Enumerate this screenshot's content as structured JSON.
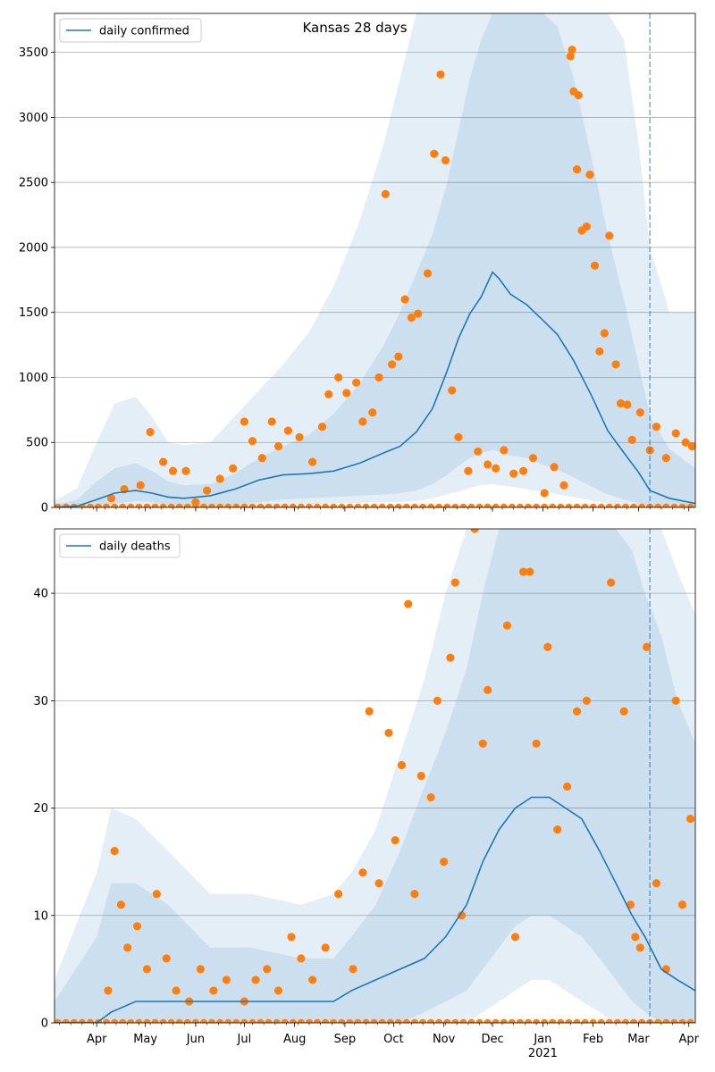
{
  "figure": {
    "title": "Kansas 28 days",
    "x_ticks": [
      "Apr",
      "May",
      "Jun",
      "Jul",
      "Aug",
      "Sep",
      "Oct",
      "Nov",
      "Dec",
      "Jan",
      "Feb",
      "Mar",
      "Apr"
    ],
    "x_year_label": "2021",
    "colors": {
      "line": "#1f77b4",
      "band": "#1f77b4",
      "points": "#ff7f0e",
      "grid": "#b0b0b0"
    },
    "vline_date": "Mar 8, 2021"
  },
  "chart_data": [
    {
      "type": "line",
      "legend": "daily confirmed",
      "legend_position": "top-left",
      "x_range": [
        "Mar 6, 2020",
        "Apr 5, 2021"
      ],
      "ylim": [
        0,
        3800
      ],
      "y_ticks": [
        0,
        500,
        1000,
        1500,
        2000,
        2500,
        3000,
        3500
      ],
      "grid": "horizontal",
      "median": [
        {
          "date": "Mar 6",
          "y": 0
        },
        {
          "date": "Mar 20",
          "y": 10
        },
        {
          "date": "Apr 1",
          "y": 60
        },
        {
          "date": "Apr 12",
          "y": 110
        },
        {
          "date": "Apr 25",
          "y": 130
        },
        {
          "date": "May 5",
          "y": 110
        },
        {
          "date": "May 15",
          "y": 80
        },
        {
          "date": "May 25",
          "y": 70
        },
        {
          "date": "Jun 10",
          "y": 90
        },
        {
          "date": "Jun 25",
          "y": 140
        },
        {
          "date": "Jul 10",
          "y": 210
        },
        {
          "date": "Jul 25",
          "y": 250
        },
        {
          "date": "Aug 10",
          "y": 260
        },
        {
          "date": "Aug 25",
          "y": 280
        },
        {
          "date": "Sep 10",
          "y": 340
        },
        {
          "date": "Sep 25",
          "y": 420
        },
        {
          "date": "Oct 5",
          "y": 470
        },
        {
          "date": "Oct 15",
          "y": 580
        },
        {
          "date": "Oct 25",
          "y": 760
        },
        {
          "date": "Nov 3",
          "y": 1050
        },
        {
          "date": "Nov 10",
          "y": 1300
        },
        {
          "date": "Nov 17",
          "y": 1490
        },
        {
          "date": "Nov 24",
          "y": 1620
        },
        {
          "date": "Dec 1",
          "y": 1810
        },
        {
          "date": "Dec 5",
          "y": 1760
        },
        {
          "date": "Dec 12",
          "y": 1640
        },
        {
          "date": "Dec 22",
          "y": 1560
        },
        {
          "date": "Jan 1",
          "y": 1440
        },
        {
          "date": "Jan 10",
          "y": 1330
        },
        {
          "date": "Jan 20",
          "y": 1130
        },
        {
          "date": "Jan 31",
          "y": 860
        },
        {
          "date": "Feb 10",
          "y": 590
        },
        {
          "date": "Feb 20",
          "y": 420
        },
        {
          "date": "Mar 1",
          "y": 270
        },
        {
          "date": "Mar 8",
          "y": 130
        },
        {
          "date": "Mar 20",
          "y": 70
        },
        {
          "date": "Apr 5",
          "y": 30
        }
      ],
      "bands": [
        {
          "lower": [
            0,
            0,
            5,
            30,
            50,
            40,
            20,
            10,
            10,
            20,
            40,
            60,
            70,
            80,
            90,
            100,
            110,
            130,
            180,
            250,
            320,
            380,
            420,
            440,
            430,
            400,
            380,
            330,
            290,
            230,
            160,
            100,
            60,
            30,
            10,
            0,
            0
          ],
          "upper": [
            20,
            60,
            200,
            300,
            340,
            280,
            200,
            170,
            180,
            260,
            380,
            470,
            560,
            720,
            950,
            1250,
            1500,
            1800,
            2100,
            2500,
            2900,
            3300,
            3600,
            3800,
            3800,
            3800,
            3800,
            3800,
            3700,
            3300,
            2700,
            2100,
            1600,
            1100,
            700,
            450,
            300
          ]
        },
        {
          "lower": [
            0,
            0,
            0,
            10,
            20,
            15,
            5,
            0,
            0,
            5,
            10,
            20,
            25,
            30,
            35,
            40,
            40,
            50,
            70,
            100,
            120,
            150,
            170,
            180,
            170,
            160,
            140,
            120,
            100,
            80,
            50,
            30,
            15,
            5,
            0,
            0,
            0
          ],
          "upper": [
            50,
            150,
            500,
            800,
            850,
            700,
            500,
            480,
            500,
            700,
            900,
            1100,
            1350,
            1700,
            2200,
            2800,
            3300,
            3800,
            3800,
            3800,
            3800,
            3800,
            3800,
            3800,
            3800,
            3800,
            3800,
            3800,
            3800,
            3800,
            3800,
            3800,
            3600,
            2800,
            2000,
            1500,
            1500
          ]
        }
      ],
      "observed": [
        {
          "date": "Apr 10",
          "y": 70
        },
        {
          "date": "Apr 18",
          "y": 140
        },
        {
          "date": "Apr 28",
          "y": 170
        },
        {
          "date": "May 4",
          "y": 580
        },
        {
          "date": "May 12",
          "y": 350
        },
        {
          "date": "May 18",
          "y": 280
        },
        {
          "date": "May 26",
          "y": 280
        },
        {
          "date": "Jun 1",
          "y": 40
        },
        {
          "date": "Jun 8",
          "y": 130
        },
        {
          "date": "Jun 16",
          "y": 220
        },
        {
          "date": "Jun 24",
          "y": 300
        },
        {
          "date": "Jul 1",
          "y": 660
        },
        {
          "date": "Jul 6",
          "y": 510
        },
        {
          "date": "Jul 12",
          "y": 380
        },
        {
          "date": "Jul 18",
          "y": 660
        },
        {
          "date": "Jul 22",
          "y": 470
        },
        {
          "date": "Jul 28",
          "y": 590
        },
        {
          "date": "Aug 4",
          "y": 540
        },
        {
          "date": "Aug 12",
          "y": 350
        },
        {
          "date": "Aug 18",
          "y": 620
        },
        {
          "date": "Aug 22",
          "y": 870
        },
        {
          "date": "Aug 28",
          "y": 1000
        },
        {
          "date": "Sep 2",
          "y": 880
        },
        {
          "date": "Sep 8",
          "y": 960
        },
        {
          "date": "Sep 12",
          "y": 660
        },
        {
          "date": "Sep 18",
          "y": 730
        },
        {
          "date": "Sep 22",
          "y": 1000
        },
        {
          "date": "Sep 26",
          "y": 2410
        },
        {
          "date": "Sep 30",
          "y": 1100
        },
        {
          "date": "Oct 4",
          "y": 1160
        },
        {
          "date": "Oct 8",
          "y": 1600
        },
        {
          "date": "Oct 12",
          "y": 1460
        },
        {
          "date": "Oct 16",
          "y": 1490
        },
        {
          "date": "Oct 22",
          "y": 1800
        },
        {
          "date": "Oct 26",
          "y": 2720
        },
        {
          "date": "Oct 30",
          "y": 3330
        },
        {
          "date": "Nov 2",
          "y": 2670
        },
        {
          "date": "Nov 6",
          "y": 900
        },
        {
          "date": "Nov 10",
          "y": 540
        },
        {
          "date": "Nov 16",
          "y": 280
        },
        {
          "date": "Nov 22",
          "y": 430
        },
        {
          "date": "Nov 28",
          "y": 330
        },
        {
          "date": "Dec 3",
          "y": 300
        },
        {
          "date": "Dec 8",
          "y": 440
        },
        {
          "date": "Dec 14",
          "y": 260
        },
        {
          "date": "Dec 20",
          "y": 280
        },
        {
          "date": "Dec 26",
          "y": 380
        },
        {
          "date": "Jan 2",
          "y": 110
        },
        {
          "date": "Jan 8",
          "y": 310
        },
        {
          "date": "Jan 14",
          "y": 170
        },
        {
          "date": "Jan 18",
          "y": 3470
        },
        {
          "date": "Jan 19",
          "y": 3520
        },
        {
          "date": "Jan 20",
          "y": 3200
        },
        {
          "date": "Jan 22",
          "y": 2600
        },
        {
          "date": "Jan 23",
          "y": 3170
        },
        {
          "date": "Jan 25",
          "y": 2130
        },
        {
          "date": "Jan 28",
          "y": 2160
        },
        {
          "date": "Jan 30",
          "y": 2560
        },
        {
          "date": "Feb 2",
          "y": 1860
        },
        {
          "date": "Feb 5",
          "y": 1200
        },
        {
          "date": "Feb 8",
          "y": 1340
        },
        {
          "date": "Feb 11",
          "y": 2090
        },
        {
          "date": "Feb 15",
          "y": 1100
        },
        {
          "date": "Feb 18",
          "y": 800
        },
        {
          "date": "Feb 22",
          "y": 790
        },
        {
          "date": "Feb 25",
          "y": 520
        },
        {
          "date": "Mar 2",
          "y": 730
        },
        {
          "date": "Mar 8",
          "y": 440
        },
        {
          "date": "Mar 12",
          "y": 620
        },
        {
          "date": "Mar 18",
          "y": 380
        },
        {
          "date": "Mar 24",
          "y": 570
        },
        {
          "date": "Mar 30",
          "y": 500
        },
        {
          "date": "Apr 3",
          "y": 470
        }
      ]
    },
    {
      "type": "line",
      "legend": "daily deaths",
      "legend_position": "top-left",
      "x_range": [
        "Mar 6, 2020",
        "Apr 5, 2021"
      ],
      "ylim": [
        0,
        46
      ],
      "y_ticks": [
        0,
        10,
        20,
        30,
        40
      ],
      "grid": "horizontal",
      "median": [
        {
          "date": "Mar 6",
          "y": 0
        },
        {
          "date": "Apr 1",
          "y": 0
        },
        {
          "date": "Apr 10",
          "y": 1
        },
        {
          "date": "Apr 25",
          "y": 2
        },
        {
          "date": "May 15",
          "y": 2
        },
        {
          "date": "Jun 10",
          "y": 2
        },
        {
          "date": "Jul 5",
          "y": 2
        },
        {
          "date": "Aug 5",
          "y": 2
        },
        {
          "date": "Aug 25",
          "y": 2
        },
        {
          "date": "Sep 5",
          "y": 3
        },
        {
          "date": "Sep 20",
          "y": 4
        },
        {
          "date": "Oct 5",
          "y": 5
        },
        {
          "date": "Oct 20",
          "y": 6
        },
        {
          "date": "Nov 2",
          "y": 8
        },
        {
          "date": "Nov 15",
          "y": 11
        },
        {
          "date": "Nov 25",
          "y": 15
        },
        {
          "date": "Dec 5",
          "y": 18
        },
        {
          "date": "Dec 15",
          "y": 20
        },
        {
          "date": "Dec 25",
          "y": 21
        },
        {
          "date": "Jan 5",
          "y": 21
        },
        {
          "date": "Jan 15",
          "y": 20
        },
        {
          "date": "Jan 25",
          "y": 19
        },
        {
          "date": "Feb 5",
          "y": 16
        },
        {
          "date": "Feb 15",
          "y": 13
        },
        {
          "date": "Feb 25",
          "y": 10
        },
        {
          "date": "Mar 5",
          "y": 8
        },
        {
          "date": "Mar 15",
          "y": 5
        },
        {
          "date": "Mar 25",
          "y": 4
        },
        {
          "date": "Apr 5",
          "y": 3
        }
      ],
      "bands": [
        {
          "lower": [
            0,
            0,
            0,
            0,
            0,
            0,
            0,
            0,
            0,
            0,
            0,
            0,
            1,
            2,
            3,
            5,
            7,
            9,
            10,
            10,
            9,
            8,
            6,
            4,
            2,
            1,
            0,
            0,
            0
          ],
          "upper": [
            2,
            8,
            13,
            13,
            11,
            7,
            7,
            6,
            6,
            8,
            11,
            16,
            22,
            27,
            33,
            40,
            46,
            46,
            46,
            46,
            46,
            46,
            46,
            46,
            44,
            40,
            36,
            30,
            26
          ]
        },
        {
          "lower": [
            0,
            0,
            0,
            0,
            0,
            0,
            0,
            0,
            0,
            0,
            0,
            0,
            0,
            0,
            0,
            1,
            2,
            3,
            4,
            4,
            3,
            2,
            1,
            0,
            0,
            0,
            0,
            0,
            0
          ],
          "upper": [
            4,
            14,
            20,
            19,
            16,
            12,
            12,
            11,
            12,
            14,
            18,
            25,
            32,
            40,
            46,
            46,
            46,
            46,
            46,
            46,
            46,
            46,
            46,
            46,
            46,
            46,
            46,
            42,
            38
          ]
        }
      ],
      "observed": [
        {
          "date": "Apr 8",
          "y": 3
        },
        {
          "date": "Apr 12",
          "y": 16
        },
        {
          "date": "Apr 16",
          "y": 11
        },
        {
          "date": "Apr 20",
          "y": 7
        },
        {
          "date": "Apr 26",
          "y": 9
        },
        {
          "date": "May 2",
          "y": 5
        },
        {
          "date": "May 8",
          "y": 12
        },
        {
          "date": "May 14",
          "y": 6
        },
        {
          "date": "May 20",
          "y": 3
        },
        {
          "date": "May 28",
          "y": 2
        },
        {
          "date": "Jun 4",
          "y": 5
        },
        {
          "date": "Jun 12",
          "y": 3
        },
        {
          "date": "Jun 20",
          "y": 4
        },
        {
          "date": "Jul 1",
          "y": 2
        },
        {
          "date": "Jul 8",
          "y": 4
        },
        {
          "date": "Jul 15",
          "y": 5
        },
        {
          "date": "Jul 22",
          "y": 3
        },
        {
          "date": "Jul 30",
          "y": 8
        },
        {
          "date": "Aug 5",
          "y": 6
        },
        {
          "date": "Aug 12",
          "y": 4
        },
        {
          "date": "Aug 20",
          "y": 7
        },
        {
          "date": "Aug 28",
          "y": 12
        },
        {
          "date": "Sep 6",
          "y": 5
        },
        {
          "date": "Sep 12",
          "y": 14
        },
        {
          "date": "Sep 16",
          "y": 29
        },
        {
          "date": "Sep 22",
          "y": 13
        },
        {
          "date": "Sep 28",
          "y": 27
        },
        {
          "date": "Oct 2",
          "y": 17
        },
        {
          "date": "Oct 6",
          "y": 24
        },
        {
          "date": "Oct 10",
          "y": 39
        },
        {
          "date": "Oct 14",
          "y": 12
        },
        {
          "date": "Oct 18",
          "y": 23
        },
        {
          "date": "Oct 24",
          "y": 21
        },
        {
          "date": "Oct 28",
          "y": 30
        },
        {
          "date": "Nov 1",
          "y": 15
        },
        {
          "date": "Nov 5",
          "y": 34
        },
        {
          "date": "Nov 8",
          "y": 41
        },
        {
          "date": "Nov 12",
          "y": 10
        },
        {
          "date": "Nov 20",
          "y": 46
        },
        {
          "date": "Nov 25",
          "y": 26
        },
        {
          "date": "Nov 28",
          "y": 31
        },
        {
          "date": "Dec 10",
          "y": 37
        },
        {
          "date": "Dec 15",
          "y": 8
        },
        {
          "date": "Dec 20",
          "y": 42
        },
        {
          "date": "Dec 24",
          "y": 42
        },
        {
          "date": "Dec 28",
          "y": 26
        },
        {
          "date": "Jan 4",
          "y": 35
        },
        {
          "date": "Jan 10",
          "y": 18
        },
        {
          "date": "Jan 16",
          "y": 22
        },
        {
          "date": "Jan 22",
          "y": 29
        },
        {
          "date": "Jan 28",
          "y": 30
        },
        {
          "date": "Feb 12",
          "y": 41
        },
        {
          "date": "Feb 20",
          "y": 29
        },
        {
          "date": "Feb 24",
          "y": 11
        },
        {
          "date": "Feb 27",
          "y": 8
        },
        {
          "date": "Mar 2",
          "y": 7
        },
        {
          "date": "Mar 6",
          "y": 35
        },
        {
          "date": "Mar 12",
          "y": 13
        },
        {
          "date": "Mar 18",
          "y": 5
        },
        {
          "date": "Mar 24",
          "y": 30
        },
        {
          "date": "Mar 28",
          "y": 11
        },
        {
          "date": "Apr 2",
          "y": 19
        }
      ]
    }
  ]
}
